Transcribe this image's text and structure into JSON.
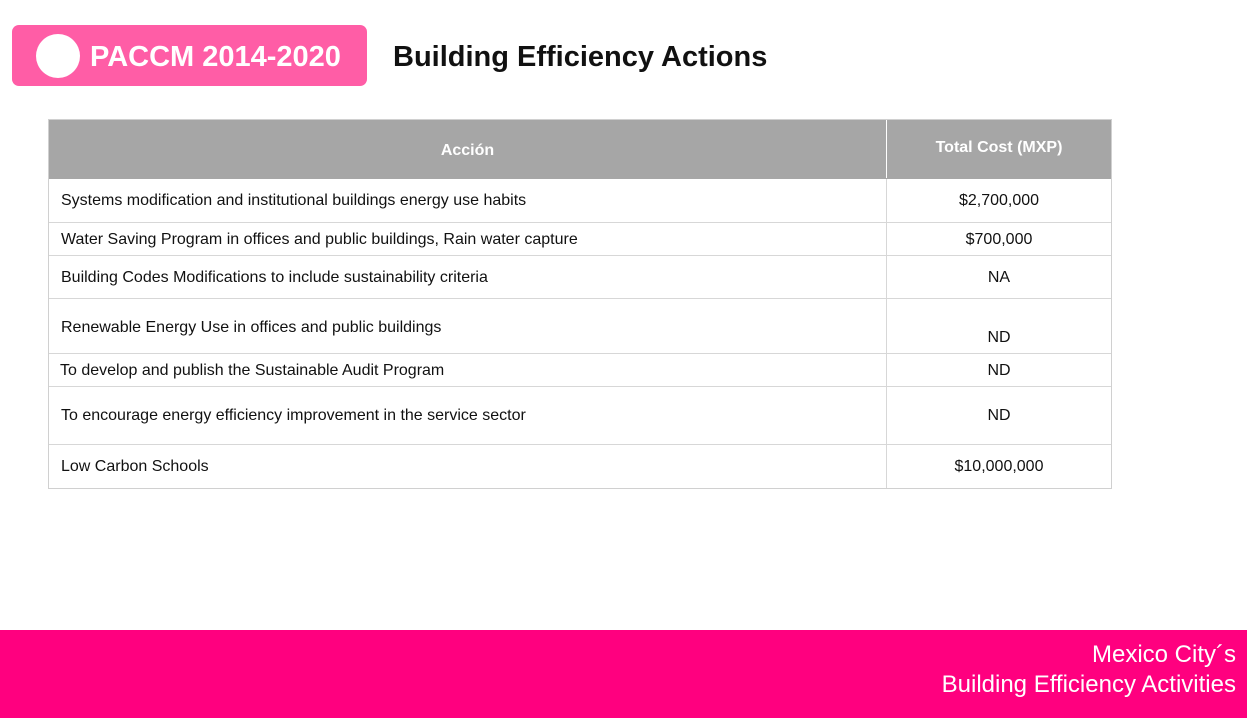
{
  "header": {
    "badge_label": "PACCM 2014-2020",
    "title": "Building Efficiency Actions"
  },
  "table": {
    "columns": [
      "Acción",
      "Total Cost  (MXP)"
    ],
    "rows": [
      {
        "action": "Systems modification and  institutional buildings energy use habits",
        "cost": "$2,700,000"
      },
      {
        "action": "Water Saving Program in offices and public buildings, Rain water capture",
        "cost": "$700,000"
      },
      {
        "action": "Building Codes Modifications to include sustainability criteria",
        "cost": "NA"
      },
      {
        "action": "Renewable Energy Use in offices and public buildings",
        "cost": "ND"
      },
      {
        "action": "To develop and publish the Sustainable Audit Program",
        "cost": "ND"
      },
      {
        "action": "To encourage energy efficiency improvement in the service sector",
        "cost": "ND"
      },
      {
        "action": "Low Carbon Schools",
        "cost": "$10,000,000"
      }
    ]
  },
  "footer": {
    "line1": "Mexico City´s",
    "line2": "Building Efficiency Activities"
  },
  "colors": {
    "badge": "#ff5da6",
    "footer": "#ff007f",
    "table_header": "#a6a6a6"
  }
}
